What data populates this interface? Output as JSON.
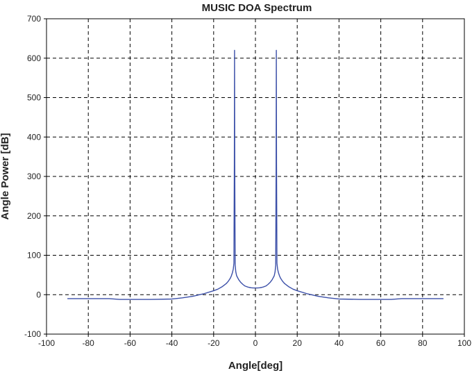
{
  "chart_data": {
    "type": "line",
    "title": "MUSIC DOA Spectrum",
    "xlabel": "Angle[deg]",
    "ylabel": "Angle Power [dB]",
    "xlim": [
      -100,
      100
    ],
    "ylim": [
      -100,
      700
    ],
    "xticks": [
      -100,
      -80,
      -60,
      -40,
      -20,
      0,
      20,
      40,
      60,
      80,
      100
    ],
    "yticks": [
      -100,
      0,
      100,
      200,
      300,
      400,
      500,
      600,
      700
    ],
    "grid": true,
    "colors": {
      "line": "#3b4fa8",
      "grid": "#000000",
      "frame": "#000000"
    },
    "series": [
      {
        "x": [
          -90,
          -80,
          -70,
          -65,
          -60,
          -50,
          -40,
          -35,
          -30,
          -25,
          -20,
          -18,
          -16,
          -14,
          -13,
          -12,
          -11.5,
          -11,
          -10.6,
          -10.3,
          -10.1,
          -10,
          -9.9,
          -9.7,
          -9.4,
          -9,
          -8,
          -7,
          -6,
          -5,
          -4,
          -3,
          -2,
          -1,
          0,
          1,
          2,
          3,
          4,
          5,
          6,
          7,
          8,
          9,
          9.4,
          9.7,
          9.9,
          10,
          10.1,
          10.3,
          10.6,
          11,
          11.5,
          12,
          13,
          14,
          16,
          18,
          20,
          25,
          30,
          35,
          40,
          50,
          60,
          65,
          70,
          80,
          90
        ],
        "y": [
          -10,
          -10,
          -10,
          -12,
          -12,
          -12,
          -11,
          -8,
          -4,
          2,
          10,
          14,
          20,
          28,
          34,
          42,
          48,
          56,
          65,
          80,
          330,
          620,
          330,
          75,
          58,
          48,
          38,
          31,
          26,
          22,
          20,
          18.5,
          17.5,
          17,
          17,
          17,
          17.5,
          18.5,
          20,
          22,
          26,
          31,
          38,
          48,
          58,
          75,
          330,
          620,
          330,
          80,
          65,
          56,
          48,
          42,
          34,
          28,
          20,
          14,
          10,
          2,
          -4,
          -8,
          -11,
          -12,
          -12,
          -12,
          -10,
          -10,
          -10
        ]
      }
    ]
  }
}
